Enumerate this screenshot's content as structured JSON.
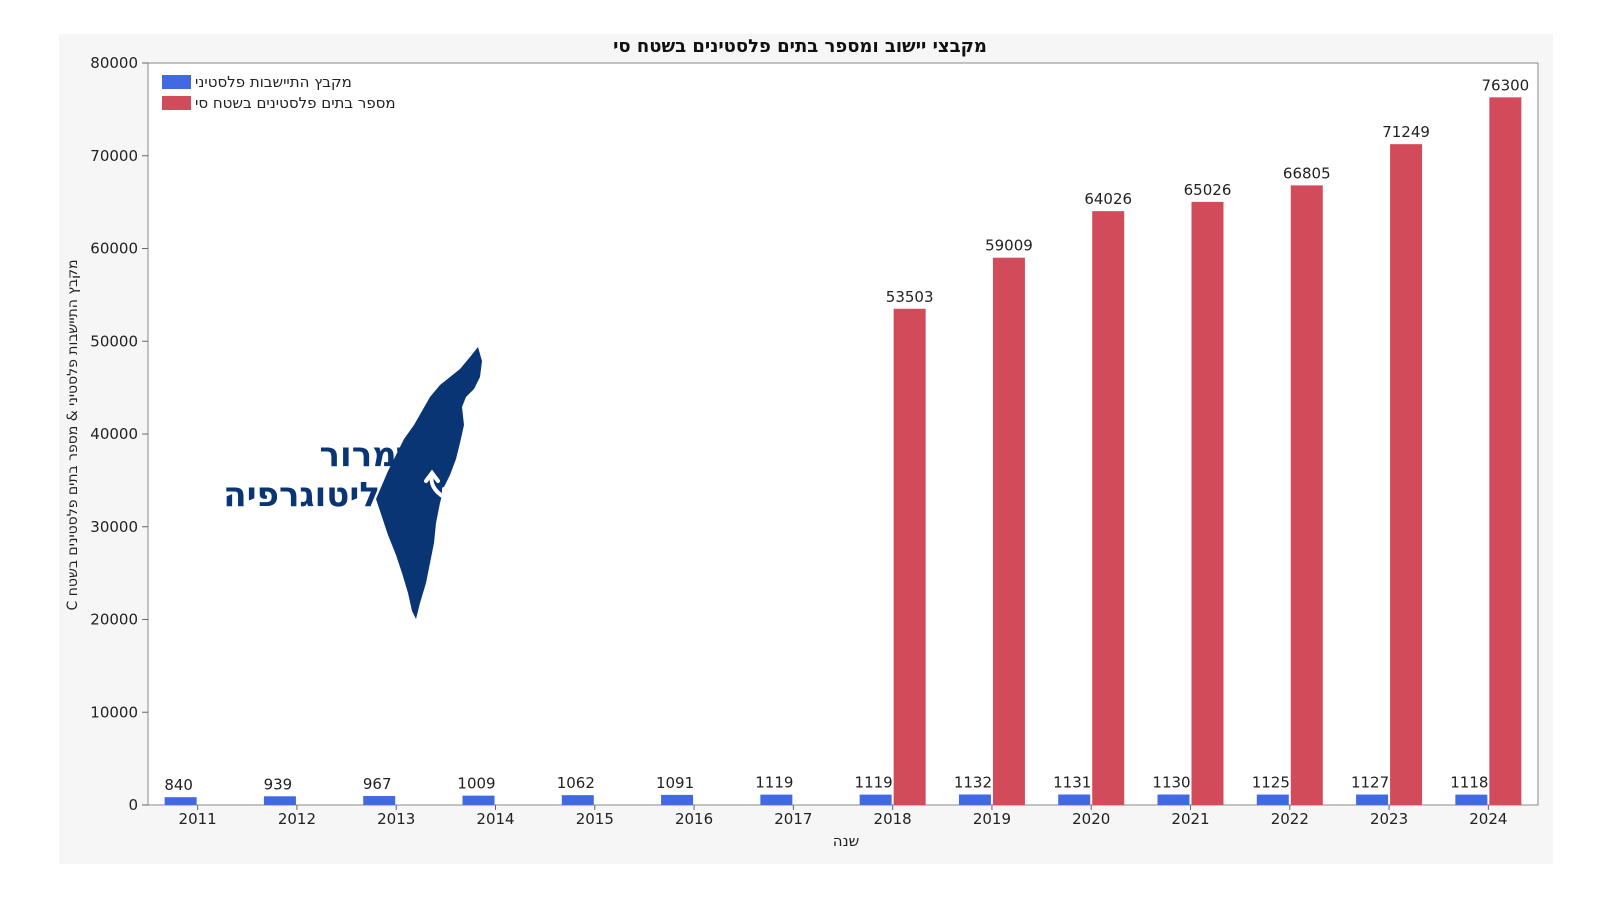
{
  "colors": {
    "settlement_series": "#4169e1",
    "houses_series": "#d24b5a",
    "logo": "#0a3575"
  },
  "logo": {
    "line1": "תמרור",
    "line2": "פוליטוגרפיה"
  },
  "chart_data": {
    "type": "bar",
    "title": "מקבצי יישוב ומספר בתים פלסטינים בשטח סי",
    "xlabel": "שנה",
    "ylabel": "מקבץ התיישבות פלסטיני & מספר בתים פלסטינים בשטח C",
    "ylim": [
      0,
      80000
    ],
    "yticks": [
      0,
      10000,
      20000,
      30000,
      40000,
      50000,
      60000,
      70000,
      80000
    ],
    "grid": false,
    "legend_position": "top-left",
    "categories": [
      "2011",
      "2012",
      "2013",
      "2014",
      "2015",
      "2016",
      "2017",
      "2018",
      "2019",
      "2020",
      "2021",
      "2022",
      "2023",
      "2024"
    ],
    "series": [
      {
        "name": "מקבץ התיישבות פלסטיני",
        "values": [
          840,
          939,
          967,
          1009,
          1062,
          1091,
          1119,
          1119,
          1132,
          1131,
          1130,
          1125,
          1127,
          1118
        ]
      },
      {
        "name": "מספר בתים פלסטינים בשטח סי",
        "values": [
          null,
          null,
          null,
          null,
          null,
          null,
          null,
          53503,
          59009,
          64026,
          65026,
          66805,
          71249,
          76300
        ]
      }
    ]
  }
}
